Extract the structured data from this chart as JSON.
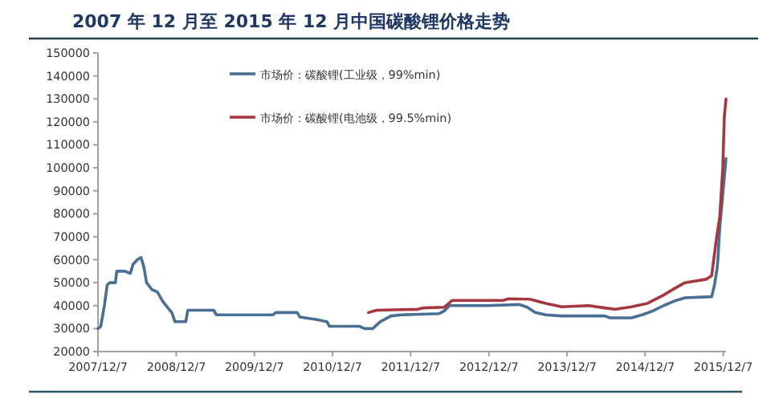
{
  "chart_data": {
    "type": "line",
    "title": "2007 年 12 月至 2015 年 12 月中国碳酸锂价格走势",
    "xlim": [
      "2007-12-07",
      "2015-12-20"
    ],
    "ylim": [
      20000,
      150000
    ],
    "xticks": [
      {
        "value": "2007-12-07",
        "label": "2007/12/7"
      },
      {
        "value": "2008-12-07",
        "label": "2008/12/7"
      },
      {
        "value": "2009-12-07",
        "label": "2009/12/7"
      },
      {
        "value": "2010-12-07",
        "label": "2010/12/7"
      },
      {
        "value": "2011-12-07",
        "label": "2011/12/7"
      },
      {
        "value": "2012-12-07",
        "label": "2012/12/7"
      },
      {
        "value": "2013-12-07",
        "label": "2013/12/7"
      },
      {
        "value": "2014-12-07",
        "label": "2014/12/7"
      },
      {
        "value": "2015-12-07",
        "label": "2015/12/7"
      }
    ],
    "yticks": [
      20000,
      30000,
      40000,
      50000,
      60000,
      70000,
      80000,
      90000,
      100000,
      110000,
      120000,
      130000,
      140000,
      150000
    ],
    "legend": "top",
    "series": [
      {
        "name": "市场价：碳酸锂(工业级，99%min)",
        "color": "#4a6f94",
        "x": [
          "2007-12-07",
          "2007-12-20",
          "2008-01-06",
          "2008-01-19",
          "2008-01-31",
          "2008-02-26",
          "2008-03-04",
          "2008-04-11",
          "2008-05-06",
          "2008-05-19",
          "2008-06-08",
          "2008-06-25",
          "2008-07-08",
          "2008-07-21",
          "2008-08-15",
          "2008-09-09",
          "2008-10-04",
          "2008-10-29",
          "2008-11-16",
          "2008-12-01",
          "2009-01-20",
          "2009-01-30",
          "2009-05-31",
          "2009-06-12",
          "2010-03-04",
          "2010-03-17",
          "2010-06-25",
          "2010-07-08",
          "2010-09-21",
          "2010-11-11",
          "2010-11-23",
          "2011-04-11",
          "2011-05-06",
          "2011-06-13",
          "2011-07-18",
          "2011-09-06",
          "2011-10-26",
          "2012-04-17",
          "2012-05-12",
          "2012-06-06",
          "2012-11-28",
          "2013-04-28",
          "2013-06-04",
          "2013-07-11",
          "2013-08-30",
          "2013-11-13",
          "2014-06-01",
          "2014-06-26",
          "2014-10-04",
          "2014-11-23",
          "2015-01-12",
          "2015-03-03",
          "2015-04-22",
          "2015-06-11",
          "2015-10-14",
          "2015-10-27",
          "2015-11-08",
          "2015-11-12",
          "2015-11-20",
          "2015-12-20"
        ],
        "values": [
          30000,
          31000,
          40000,
          49000,
          50000,
          50000,
          55000,
          55000,
          54000,
          58000,
          60000,
          61000,
          57000,
          50000,
          47000,
          46000,
          42000,
          39000,
          37000,
          33000,
          33000,
          38000,
          38000,
          36000,
          36000,
          37000,
          37000,
          35000,
          34000,
          33000,
          31000,
          31000,
          30000,
          30000,
          33000,
          35500,
          36000,
          36500,
          37700,
          40000,
          40000,
          40500,
          39300,
          37000,
          36000,
          35500,
          35500,
          34700,
          34700,
          36000,
          37700,
          40000,
          42000,
          43400,
          43900,
          49000,
          56000,
          60000,
          73000,
          104000
        ]
      },
      {
        "name": "市场价：碳酸锂(电池级，99.5%min)",
        "color": "#a6373f",
        "x": [
          "2011-05-24",
          "2011-07-01",
          "2012-01-08",
          "2012-02-02",
          "2012-05-12",
          "2012-06-19",
          "2013-02-11",
          "2013-03-08",
          "2013-06-16",
          "2013-08-30",
          "2013-11-13",
          "2014-03-18",
          "2014-06-01",
          "2014-07-21",
          "2014-10-04",
          "2014-12-18",
          "2015-03-03",
          "2015-04-22",
          "2015-06-11",
          "2015-09-19",
          "2015-10-14",
          "2015-11-03",
          "2015-11-21",
          "2015-12-05",
          "2015-12-12",
          "2015-12-20"
        ],
        "values": [
          37000,
          38000,
          38400,
          39000,
          39300,
          42300,
          42300,
          43000,
          42800,
          41000,
          39500,
          40000,
          39000,
          38400,
          39500,
          41000,
          44600,
          47400,
          50000,
          51500,
          53000,
          67600,
          79000,
          100000,
          122000,
          130000
        ]
      }
    ]
  }
}
